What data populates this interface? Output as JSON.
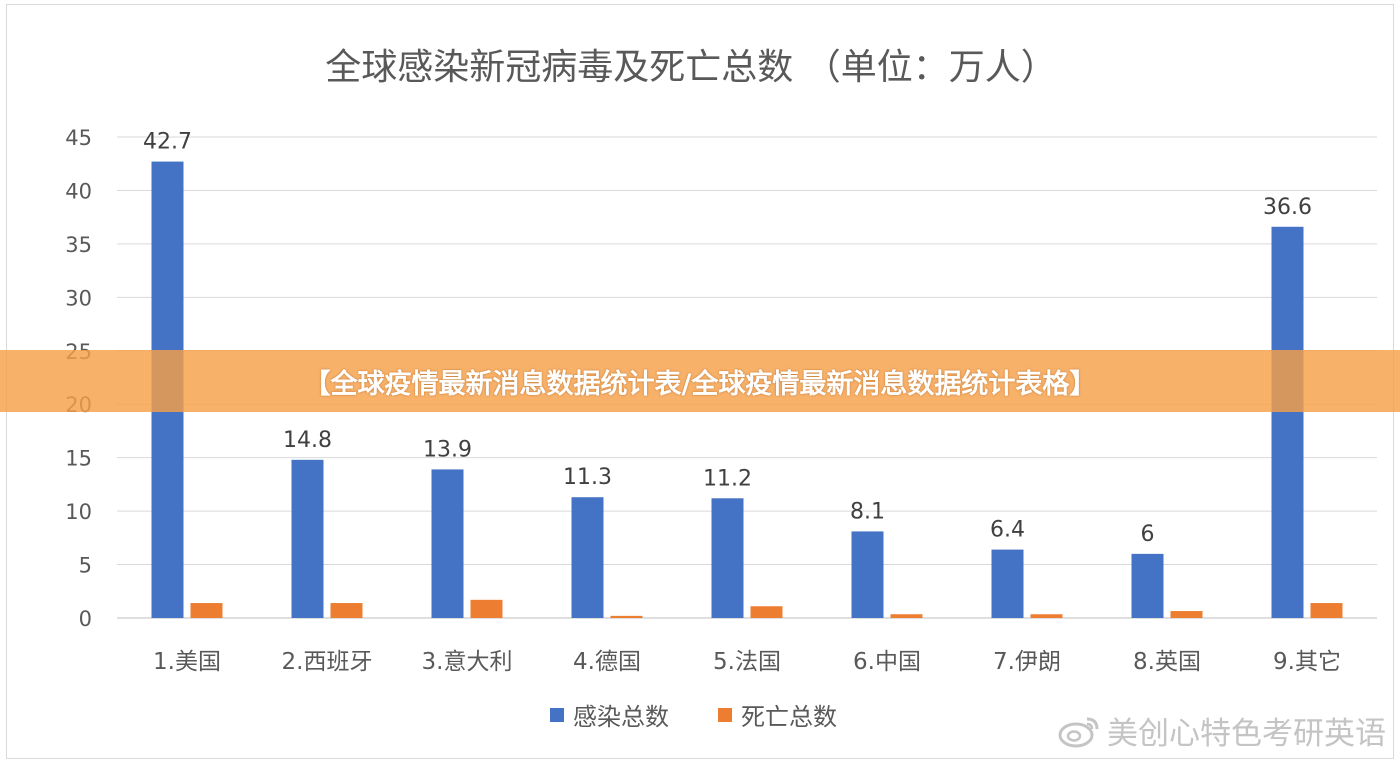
{
  "banner": {
    "text": "【全球疫情最新消息数据统计表/全球疫情最新消息数据统计表格】"
  },
  "watermark": {
    "text": "美创心特色考研英语"
  },
  "chart_data": {
    "type": "bar",
    "title": "全球感染新冠病毒及死亡总数 （单位：万人）",
    "categories": [
      "1.美国",
      "2.西班牙",
      "3.意大利",
      "4.德国",
      "5.法国",
      "6.中国",
      "7.伊朗",
      "8.英国",
      "9.其它"
    ],
    "series": [
      {
        "name": "感染总数",
        "color": "#4472c4",
        "values": [
          42.7,
          14.8,
          13.9,
          11.3,
          11.2,
          8.1,
          6.4,
          6,
          36.6
        ],
        "labels": [
          "42.7",
          "14.8",
          "13.9",
          "11.3",
          "11.2",
          "8.1",
          "6.4",
          "6",
          "36.6"
        ]
      },
      {
        "name": "死亡总数",
        "color": "#ed7d31",
        "values": [
          1.4,
          1.4,
          1.7,
          0.2,
          1.1,
          0.35,
          0.35,
          0.65,
          1.4
        ]
      }
    ],
    "ylim": [
      0,
      45
    ],
    "yticks": [
      "0",
      "5",
      "10",
      "15",
      "20",
      "25",
      "30",
      "35",
      "40",
      "45"
    ],
    "grid": true,
    "legend": "bottom"
  }
}
